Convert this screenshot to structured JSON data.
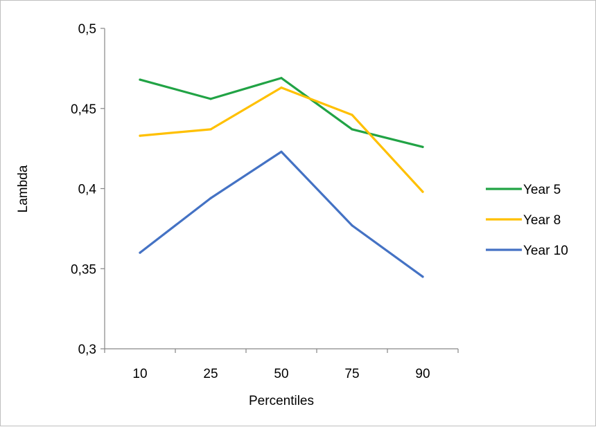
{
  "chart_data": {
    "type": "line",
    "categories": [
      "10",
      "25",
      "50",
      "75",
      "90"
    ],
    "series": [
      {
        "name": "Year 5",
        "values": [
          0.468,
          0.456,
          0.469,
          0.437,
          0.426
        ],
        "color": "#21A345"
      },
      {
        "name": "Year 8",
        "values": [
          0.433,
          0.437,
          0.463,
          0.446,
          0.398
        ],
        "color": "#FFC000"
      },
      {
        "name": "Year 10",
        "values": [
          0.36,
          0.394,
          0.423,
          0.377,
          0.345
        ],
        "color": "#4472C4"
      }
    ],
    "yticks": [
      "0,3",
      "0,35",
      "0,4",
      "0,45",
      "0,5"
    ],
    "ylim": [
      0.3,
      0.5
    ],
    "xlabel": "Percentiles",
    "ylabel": "Lambda",
    "grid": false,
    "legend_position": "right"
  }
}
